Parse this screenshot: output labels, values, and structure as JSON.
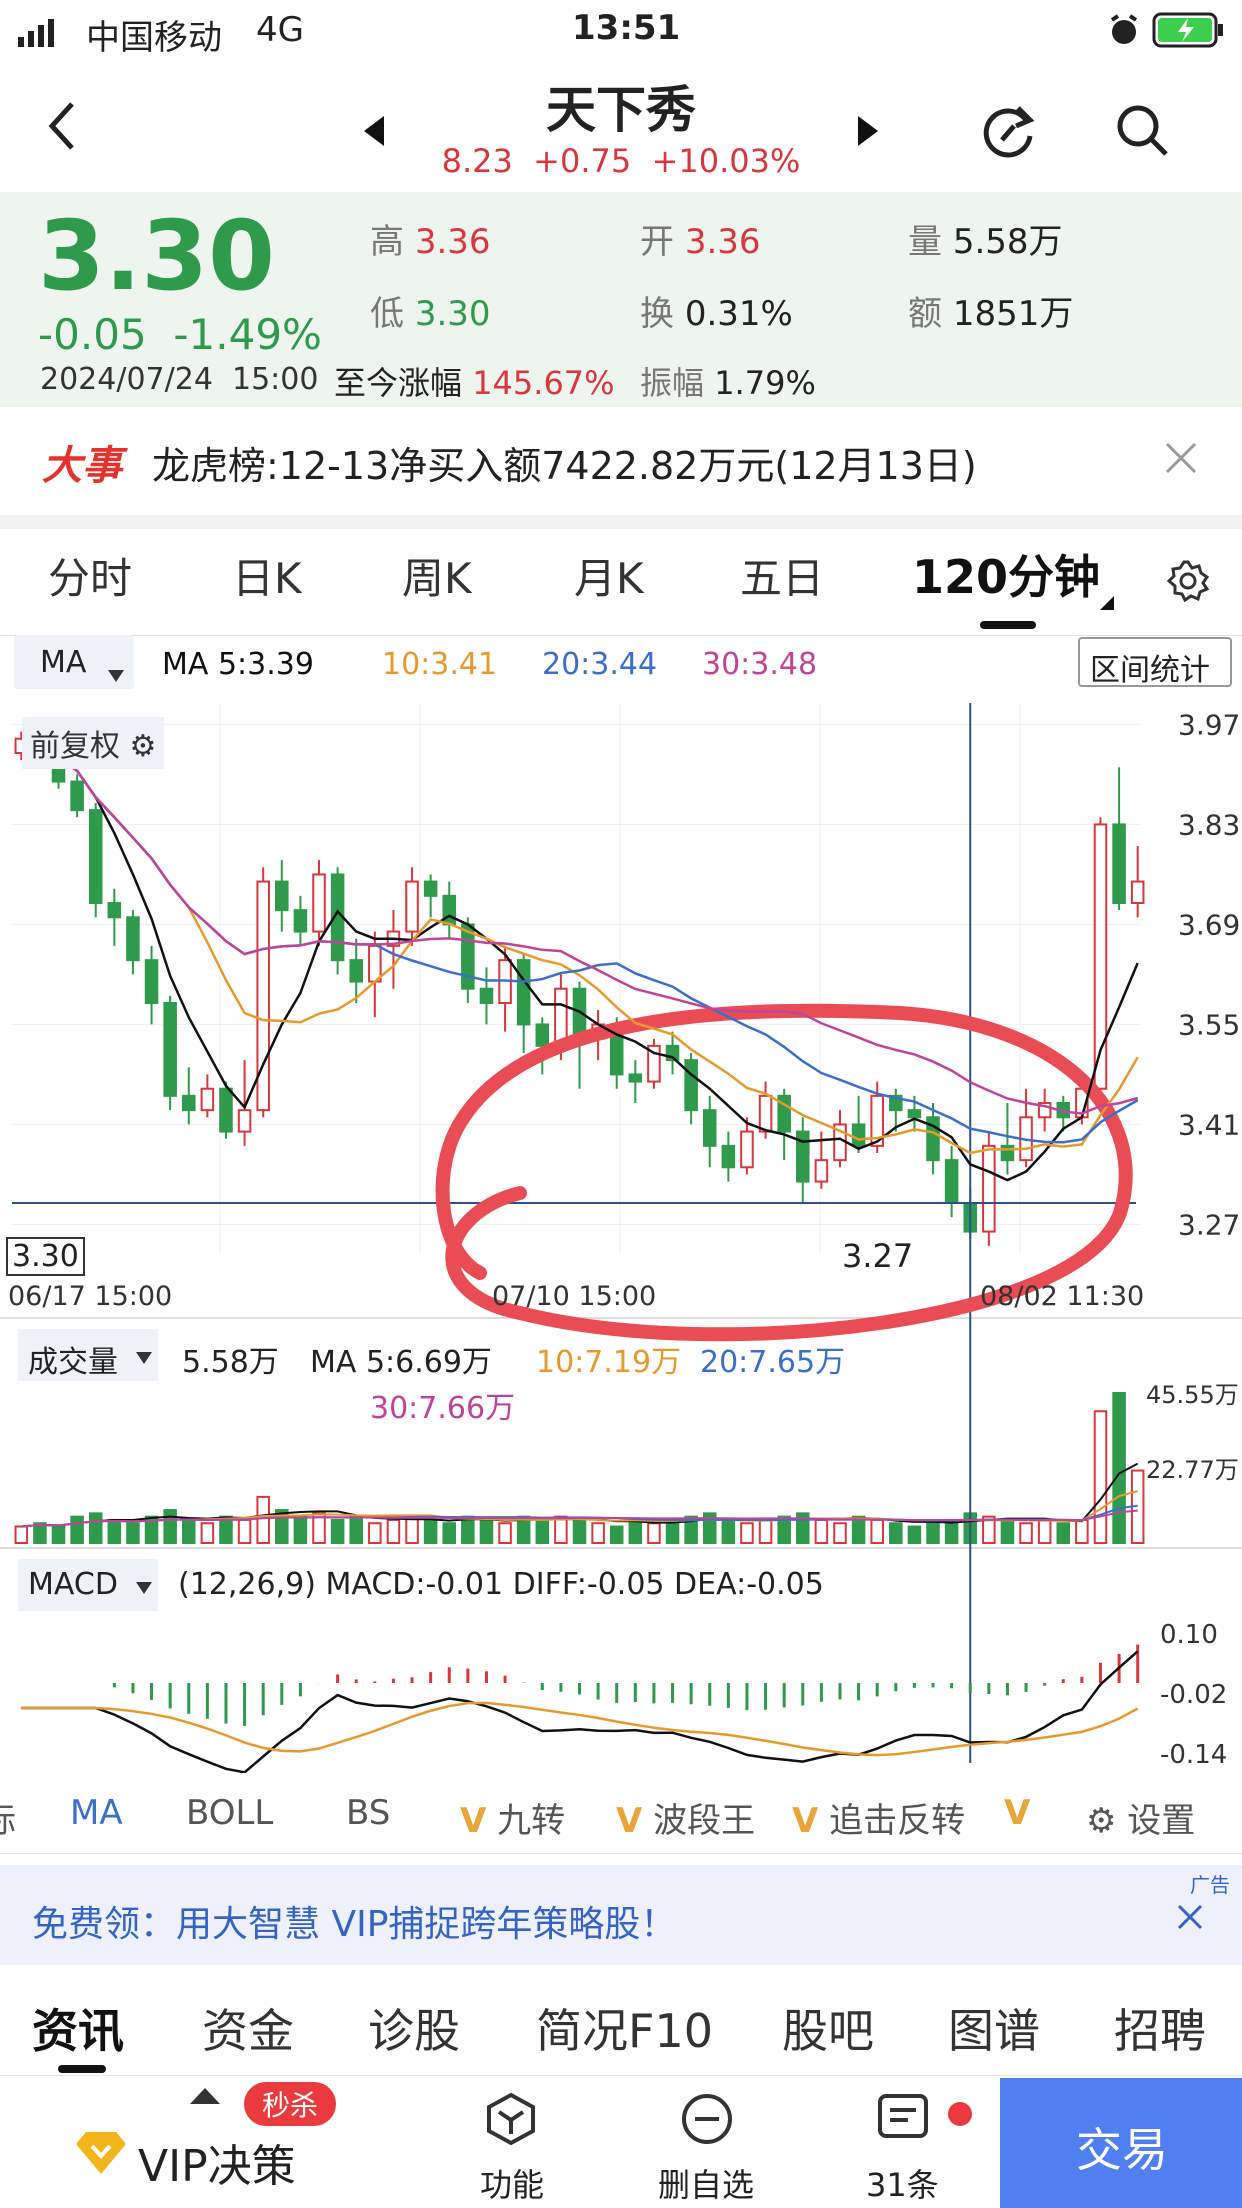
{
  "status": {
    "carrier": "中国移动",
    "network": "4G",
    "time": "13:51"
  },
  "header": {
    "title": "天下秀",
    "sub_price": "8.23",
    "sub_change": "+0.75",
    "sub_pct": "+10.03%"
  },
  "quote": {
    "price": "3.30",
    "change": "-0.05",
    "change_pct": "-1.49%",
    "datetime": "2024/07/24  15:00",
    "high_label": "高",
    "high": "3.36",
    "open_label": "开",
    "open": "3.36",
    "vol_label": "量",
    "vol": "5.58万",
    "low_label": "低",
    "low": "3.30",
    "turnover_label": "换",
    "turnover": "0.31%",
    "amount_label": "额",
    "amount": "1851万",
    "ytd_label": "至今涨幅",
    "ytd": "145.67%",
    "amp_label": "振幅",
    "amp": "1.79%"
  },
  "news": {
    "tag": "大事",
    "text": "龙虎榜:12-13净买入额7422.82万元(12月13日)"
  },
  "period_tabs": [
    "分时",
    "日K",
    "周K",
    "月K",
    "五日",
    "120分钟"
  ],
  "ma_legend": {
    "label": "MA",
    "ma5": "MA 5:3.39",
    "ma10": "10:3.41",
    "ma20": "20:3.44",
    "ma30": "30:3.48",
    "range_btn": "区间统计"
  },
  "price_chart": {
    "adjust_label": "前复权",
    "current_label": "3.30",
    "low_marker": "3.27",
    "y_ticks": [
      "3.97",
      "3.83",
      "3.69",
      "3.55",
      "3.41",
      "3.27"
    ],
    "x_ticks": [
      "06/17  15:00",
      "07/10  15:00",
      "08/02  11:30"
    ]
  },
  "volume": {
    "label": "成交量",
    "vol": "5.58万",
    "ma5": "MA 5:6.69万",
    "ma10": "10:7.19万",
    "ma20": "20:7.65万",
    "ma30": "30:7.66万",
    "y_ticks": [
      "45.55万",
      "22.77万"
    ]
  },
  "macd": {
    "label": "MACD",
    "params": "(12,26,9) MACD:-0.01 DIFF:-0.05 DEA:-0.05",
    "y_ticks": [
      "0.10",
      "-0.02",
      "-0.14"
    ]
  },
  "indicators": [
    "标",
    "MA",
    "BOLL",
    "BS",
    "九转",
    "波段王",
    "追击反转",
    "V",
    "设置"
  ],
  "ad": {
    "text": "免费领：用大智慧 VIP捕捉跨年策略股！",
    "tag": "广告"
  },
  "bottom_tabs": [
    "资讯",
    "资金",
    "诊股",
    "简况F10",
    "股吧",
    "图谱",
    "招聘"
  ],
  "bottom_bar": {
    "vip": "VIP决策",
    "badge": "秒杀",
    "func": "功能",
    "del": "删自选",
    "msgs": "31条",
    "trade": "交易"
  },
  "colors": {
    "up": "#d9363e",
    "down": "#2f9a4c",
    "ma5": "#111111",
    "ma10": "#e69a2e",
    "ma20": "#3b6fc9",
    "ma30": "#c0459a",
    "trade": "#4f7ff0"
  }
}
